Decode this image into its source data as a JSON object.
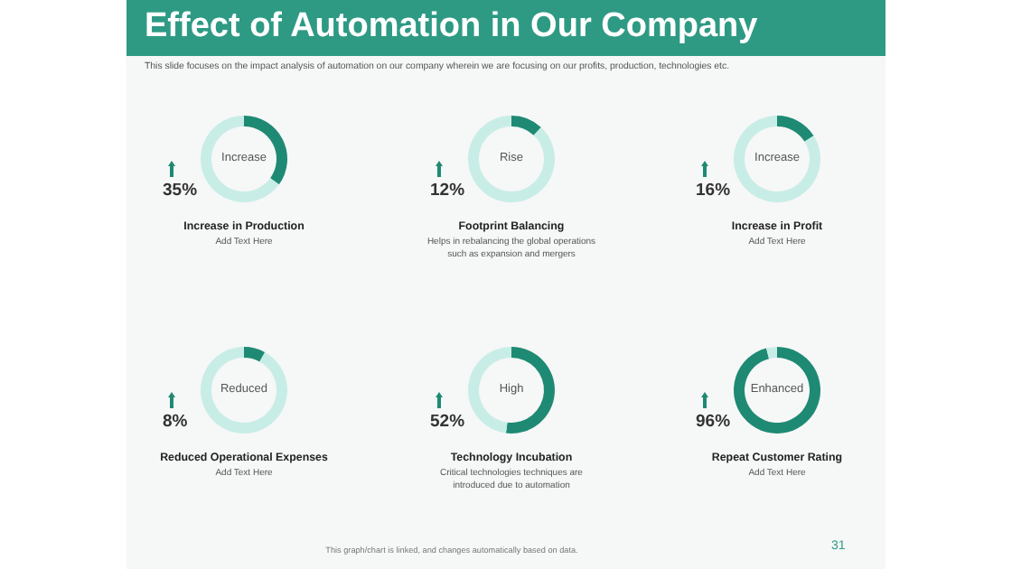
{
  "chart_data": [
    {
      "type": "other",
      "title": "Effect of Automation in Our Company",
      "subtitle": "This slide focuses on the impact analysis of automation on our company wherein we are focusing on our profits, production, technologies etc.",
      "annotations": [
        "This graph/chart is linked, and changes automatically based on data.",
        "31"
      ]
    },
    {
      "type": "donut",
      "title": "Increase in Production",
      "subtitle": "Add Text Here",
      "categories": [
        null,
        null
      ],
      "values": [
        35,
        65
      ],
      "colors": [
        "#1e8a73",
        "#c8ede7"
      ],
      "annotations": [
        "Increase",
        "35%"
      ]
    },
    {
      "type": "donut",
      "title": "Footprint Balancing",
      "subtitle": "Helps in rebalancing the global operations such as expansion and mergers",
      "categories": [
        null,
        null
      ],
      "values": [
        12,
        88
      ],
      "colors": [
        "#1e8a73",
        "#c8ede7"
      ],
      "annotations": [
        "Rise",
        "12%"
      ]
    },
    {
      "type": "donut",
      "title": "Increase in Profit",
      "subtitle": "Add Text Here",
      "categories": [
        null,
        null
      ],
      "values": [
        16,
        84
      ],
      "colors": [
        "#1e8a73",
        "#c8ede7"
      ],
      "annotations": [
        "Increase",
        "16%"
      ]
    },
    {
      "type": "donut",
      "title": "Reduced Operational Expenses",
      "subtitle": "Add Text Here",
      "categories": [
        null,
        null
      ],
      "values": [
        8,
        92
      ],
      "colors": [
        "#1e8a73",
        "#c8ede7"
      ],
      "annotations": [
        "Reduced",
        "8%"
      ]
    },
    {
      "type": "donut",
      "title": "Technology Incubation",
      "subtitle": "Critical technologies techniques are introduced due to automation",
      "categories": [
        null,
        null
      ],
      "values": [
        52,
        48
      ],
      "colors": [
        "#1e8a73",
        "#c8ede7"
      ],
      "annotations": [
        "High",
        "52%"
      ]
    },
    {
      "type": "donut",
      "title": "Repeat Customer Rating",
      "subtitle": "Add Text Here",
      "categories": [
        null,
        null
      ],
      "values": [
        96,
        4
      ],
      "colors": [
        "#1e8a73",
        "#c8ede7"
      ],
      "annotations": [
        "Enhanced",
        "96%"
      ]
    }
  ]
}
